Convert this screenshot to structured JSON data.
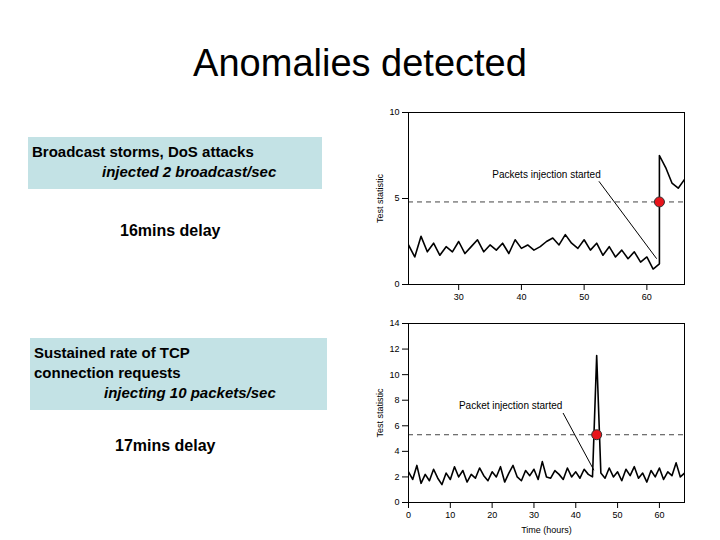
{
  "title": "Anomalies detected",
  "chart_data": [
    {
      "type": "line",
      "description": [
        "Broadcast storms, DoS attacks"
      ],
      "detail": "injected 2 broadcast/sec",
      "delay": "16mins delay",
      "annotation": "Packets injection started",
      "ylabel": "Test statistic",
      "color": "#000000",
      "x": [
        22,
        23,
        24,
        25,
        26,
        27,
        28,
        29,
        30,
        31,
        32,
        33,
        34,
        35,
        36,
        37,
        38,
        39,
        40,
        41,
        42,
        43,
        44,
        45,
        46,
        47,
        48,
        49,
        50,
        51,
        52,
        53,
        54,
        55,
        56,
        57,
        58,
        59,
        60,
        61,
        62,
        62,
        63,
        64,
        65,
        66
      ],
      "values": [
        2.3,
        1.6,
        2.8,
        1.9,
        2.4,
        1.7,
        2.2,
        1.9,
        2.5,
        1.8,
        2.2,
        2.6,
        1.9,
        2.3,
        2.0,
        2.4,
        1.8,
        2.6,
        2.1,
        2.3,
        2.0,
        2.2,
        2.5,
        2.7,
        2.3,
        2.9,
        2.4,
        2.1,
        2.6,
        2.0,
        2.4,
        1.7,
        2.2,
        1.6,
        2.0,
        1.5,
        1.9,
        1.3,
        1.6,
        0.9,
        1.2,
        7.5,
        6.8,
        5.9,
        5.6,
        6.1
      ],
      "threshold": 4.8,
      "detection": {
        "x": 62,
        "y": 4.8
      },
      "xlim": [
        22,
        66
      ],
      "xticks": [
        30,
        40,
        50,
        60
      ],
      "ylim": [
        0,
        10
      ],
      "yticks": [
        0,
        5,
        10
      ]
    },
    {
      "type": "line",
      "description": [
        "Sustained rate of TCP",
        "connection requests"
      ],
      "detail": "injecting 10 packets/sec",
      "delay": "17mins delay",
      "annotation": "Packet injection started",
      "ylabel": "Test statistic",
      "xlabel": "Time (hours)",
      "color": "#000000",
      "x": [
        0,
        1,
        2,
        3,
        4,
        5,
        6,
        7,
        8,
        9,
        10,
        11,
        12,
        13,
        14,
        15,
        16,
        17,
        18,
        19,
        20,
        21,
        22,
        23,
        24,
        25,
        26,
        27,
        28,
        29,
        30,
        31,
        32,
        33,
        34,
        35,
        36,
        37,
        38,
        39,
        40,
        41,
        42,
        43,
        44,
        45,
        46,
        47,
        48,
        49,
        50,
        51,
        52,
        53,
        54,
        55,
        56,
        57,
        58,
        59,
        60,
        61,
        62,
        63,
        64,
        65,
        66
      ],
      "values": [
        2.4,
        1.8,
        2.9,
        1.5,
        2.2,
        1.7,
        2.6,
        1.9,
        1.4,
        2.3,
        1.8,
        2.8,
        2.0,
        2.5,
        1.6,
        2.2,
        1.9,
        2.7,
        2.1,
        1.7,
        2.4,
        2.0,
        2.8,
        1.6,
        2.3,
        2.9,
        2.0,
        1.7,
        2.5,
        2.1,
        2.6,
        1.8,
        3.2,
        2.0,
        1.9,
        2.5,
        2.2,
        1.8,
        2.7,
        2.0,
        2.4,
        1.9,
        2.6,
        2.2,
        2.0,
        11.5,
        2.3,
        1.9,
        2.7,
        2.0,
        2.4,
        1.7,
        2.6,
        2.1,
        2.8,
        1.9,
        2.3,
        1.6,
        2.5,
        2.0,
        2.7,
        1.8,
        2.4,
        2.1,
        3.1,
        2.0,
        2.3
      ],
      "threshold": 5.3,
      "detection": {
        "x": 45,
        "y": 5.3
      },
      "xlim": [
        0,
        66
      ],
      "xticks": [
        0,
        10,
        20,
        30,
        40,
        50,
        60
      ],
      "ylim": [
        0,
        14
      ],
      "yticks": [
        0,
        2,
        4,
        6,
        8,
        10,
        12,
        14
      ]
    }
  ]
}
